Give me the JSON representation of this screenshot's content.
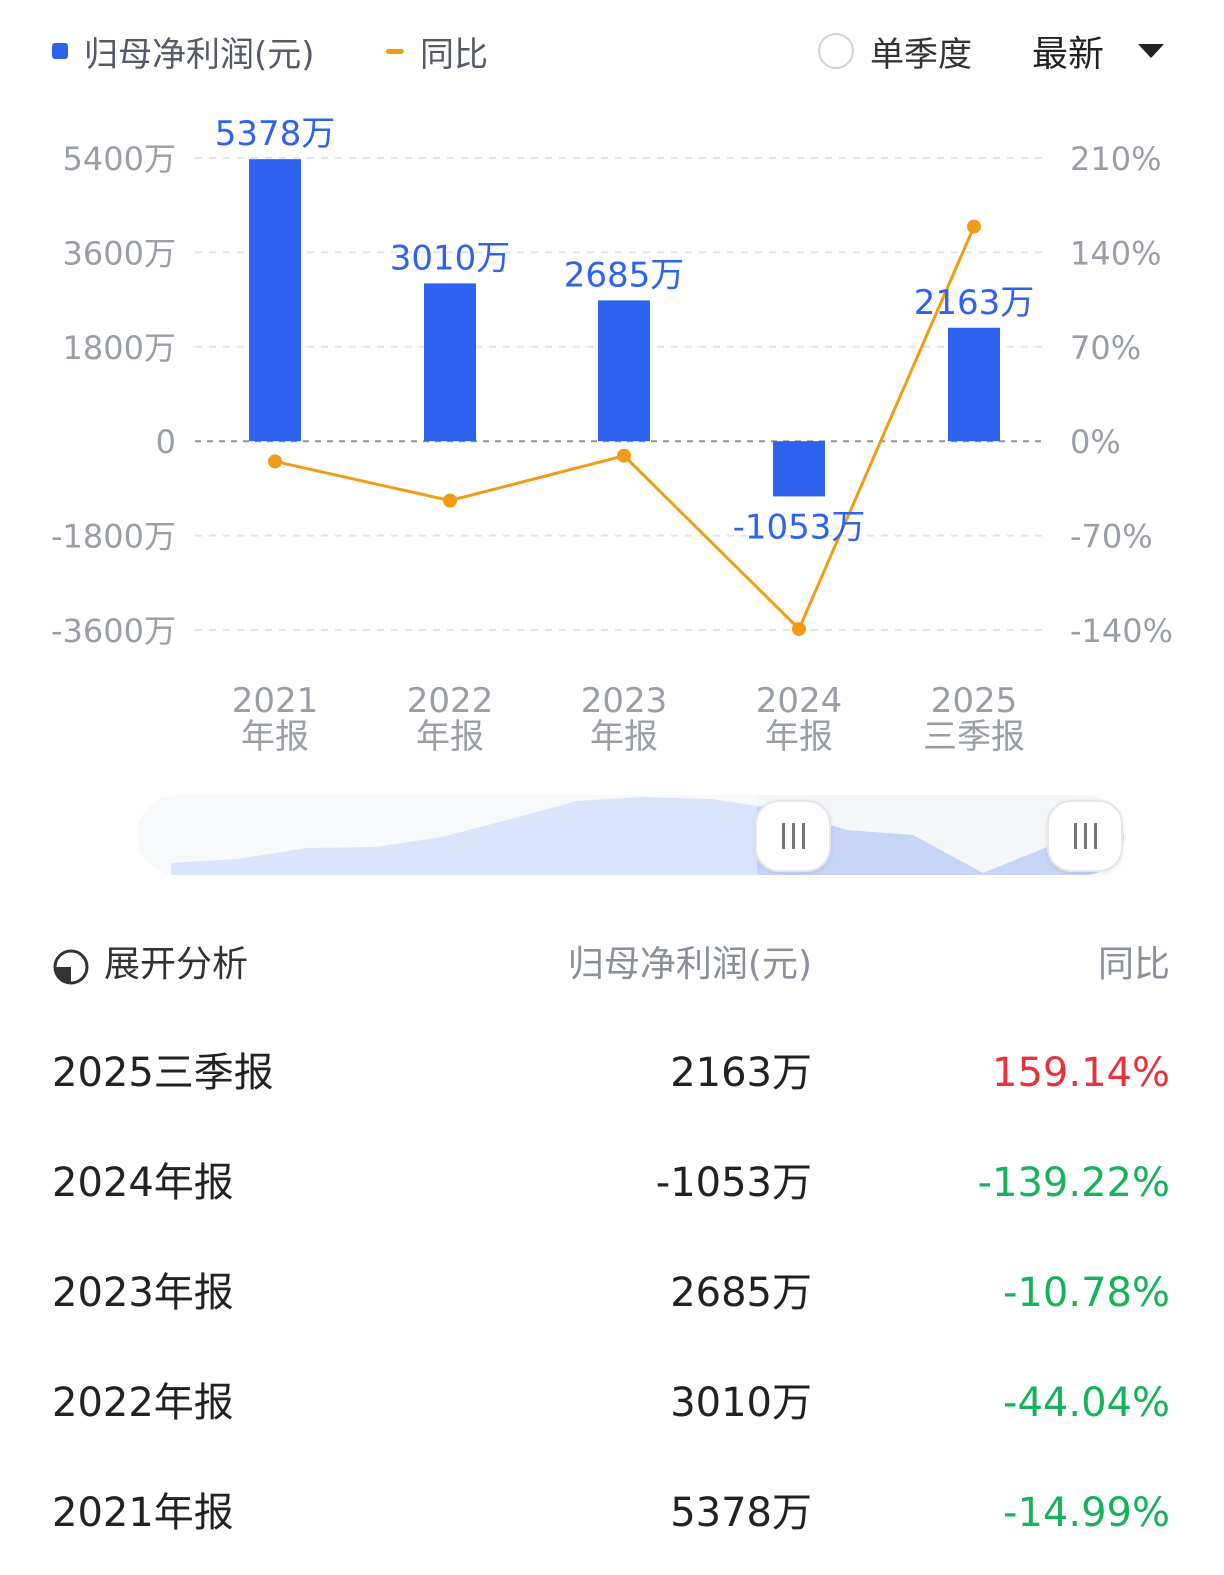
{
  "legend": {
    "series1_label": "归母净利润(元)",
    "series2_label": "同比",
    "single_quarter_label": "单季度",
    "dropdown_value": "最新"
  },
  "colors": {
    "bar": "#2e63f0",
    "line": "#f29b17",
    "positive": "#e8333a",
    "negative": "#16b35a"
  },
  "chart_data": {
    "type": "bar",
    "categories": [
      "2021\n年报",
      "2022\n年报",
      "2023\n年报",
      "2024\n年报",
      "2025\n三季报"
    ],
    "series": [
      {
        "name": "归母净利润(元)",
        "type": "bar",
        "values": [
          5378,
          3010,
          2685,
          -1053,
          2163
        ],
        "labels": [
          "5378万",
          "3010万",
          "2685万",
          "-1053万",
          "2163万"
        ]
      },
      {
        "name": "同比",
        "type": "line",
        "values": [
          -14.99,
          -44.04,
          -10.78,
          -139.22,
          159.14
        ]
      }
    ],
    "y_left": {
      "ticks": [
        5400,
        3600,
        1800,
        0,
        -1800,
        -3600
      ],
      "tick_labels": [
        "5400万",
        "3600万",
        "1800万",
        "0",
        "-1800万",
        "-3600万"
      ],
      "range": [
        -3600,
        5400
      ]
    },
    "y_right": {
      "ticks": [
        210,
        140,
        70,
        0,
        -70,
        -140
      ],
      "tick_labels": [
        "210%",
        "140%",
        "70%",
        "0%",
        "-70%",
        "-140%"
      ],
      "range": [
        -140,
        210
      ]
    },
    "grid": true,
    "legend": "top-left"
  },
  "table": {
    "header": {
      "expand_label": "展开分析",
      "value_label": "归母净利润(元)",
      "yoy_label": "同比"
    },
    "rows": [
      {
        "period": "2025三季报",
        "value": "2163万",
        "yoy": "159.14%",
        "sign": "pos"
      },
      {
        "period": "2024年报",
        "value": "-1053万",
        "yoy": "-139.22%",
        "sign": "neg"
      },
      {
        "period": "2023年报",
        "value": "2685万",
        "yoy": "-10.78%",
        "sign": "neg"
      },
      {
        "period": "2022年报",
        "value": "3010万",
        "yoy": "-44.04%",
        "sign": "neg"
      },
      {
        "period": "2021年报",
        "value": "5378万",
        "yoy": "-14.99%",
        "sign": "neg"
      }
    ]
  }
}
